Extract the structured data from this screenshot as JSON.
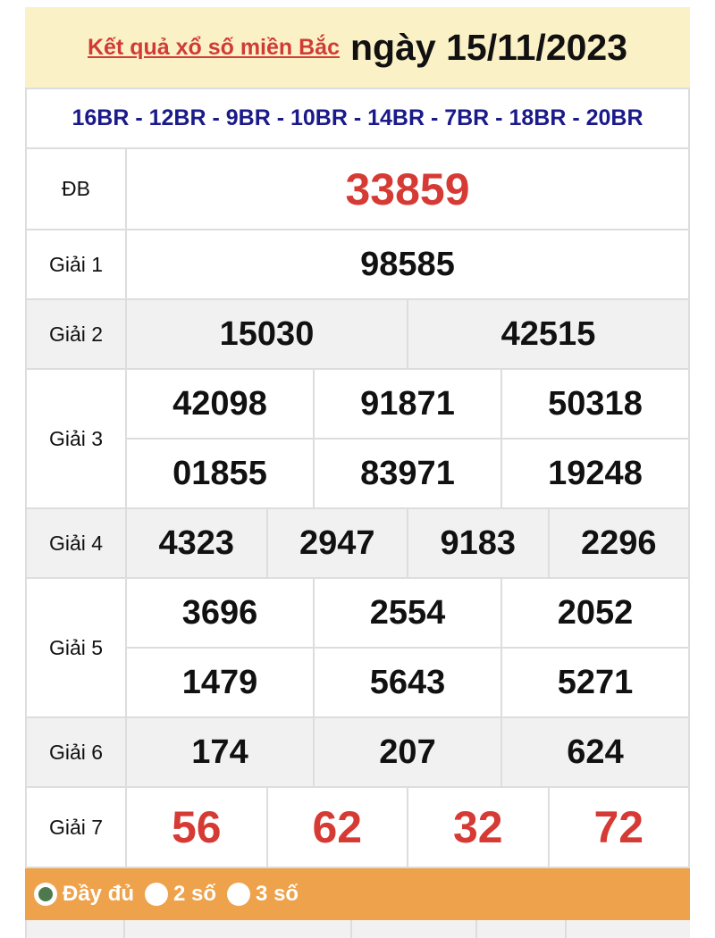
{
  "header": {
    "link": "Kết quả xổ số miền Bắc",
    "date": "ngày 15/11/2023"
  },
  "codes": "16BR - 12BR - 9BR - 10BR - 14BR - 7BR - 18BR - 20BR",
  "prizes": [
    {
      "label": "ĐB",
      "rows": [
        [
          "33859"
        ]
      ]
    },
    {
      "label": "Giải 1",
      "rows": [
        [
          "98585"
        ]
      ]
    },
    {
      "label": "Giải 2",
      "rows": [
        [
          "15030",
          "42515"
        ]
      ]
    },
    {
      "label": "Giải 3",
      "rows": [
        [
          "42098",
          "91871",
          "50318"
        ],
        [
          "01855",
          "83971",
          "19248"
        ]
      ]
    },
    {
      "label": "Giải 4",
      "rows": [
        [
          "4323",
          "2947",
          "9183",
          "2296"
        ]
      ]
    },
    {
      "label": "Giải 5",
      "rows": [
        [
          "3696",
          "2554",
          "2052"
        ],
        [
          "1479",
          "5643",
          "5271"
        ]
      ]
    },
    {
      "label": "Giải 6",
      "rows": [
        [
          "174",
          "207",
          "624"
        ]
      ]
    },
    {
      "label": "Giải 7",
      "rows": [
        [
          "56",
          "62",
          "32",
          "72"
        ]
      ]
    }
  ],
  "options": [
    {
      "label": "Đầy đủ",
      "selected": true
    },
    {
      "label": "2 số",
      "selected": false
    },
    {
      "label": "3 số",
      "selected": false
    }
  ],
  "colors": {
    "header_bg": "#fbf1c7",
    "red": "#d63a34",
    "code_blue": "#1a1a8a",
    "bar": "#eda24b"
  }
}
